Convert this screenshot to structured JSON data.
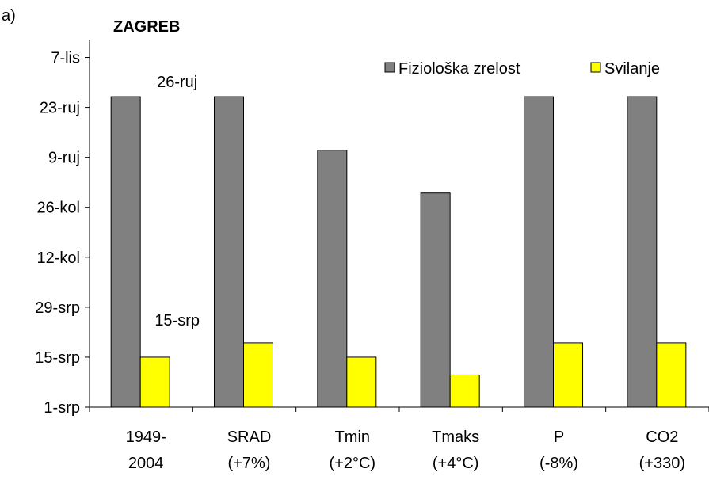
{
  "chart_data": {
    "type": "bar",
    "panel_label": "a)",
    "title": "ZAGREB",
    "categories": [
      [
        "1949-",
        "2004"
      ],
      [
        "SRAD",
        "(+7%)"
      ],
      [
        "Tmin",
        "(+2°C)"
      ],
      [
        "Tmaks",
        "(+4°C)"
      ],
      [
        "P",
        "(-8%)"
      ],
      [
        "CO2",
        "(+330)"
      ]
    ],
    "series": [
      {
        "name": "Fiziološka zrelost",
        "color": "#808080",
        "values": [
          269,
          269,
          254,
          242,
          269,
          269
        ],
        "value_labels": [
          "26-ruj",
          null,
          null,
          null,
          null,
          null
        ]
      },
      {
        "name": "Svilanje",
        "color": "#ffff00",
        "values": [
          196,
          200,
          196,
          191,
          200,
          200
        ],
        "value_labels": [
          "15-srp",
          null,
          null,
          null,
          null,
          null
        ]
      }
    ],
    "ylim": [
      182,
      285
    ],
    "yticks": [
      {
        "value": 182,
        "label": "1-srp"
      },
      {
        "value": 196,
        "label": "15-srp"
      },
      {
        "value": 210,
        "label": "29-srp"
      },
      {
        "value": 224,
        "label": "12-kol"
      },
      {
        "value": 238,
        "label": "26-kol"
      },
      {
        "value": 252,
        "label": "9-ruj"
      },
      {
        "value": 266,
        "label": "23-ruj"
      },
      {
        "value": 280,
        "label": "7-lis"
      }
    ],
    "grid": false,
    "legend": "top-right"
  }
}
